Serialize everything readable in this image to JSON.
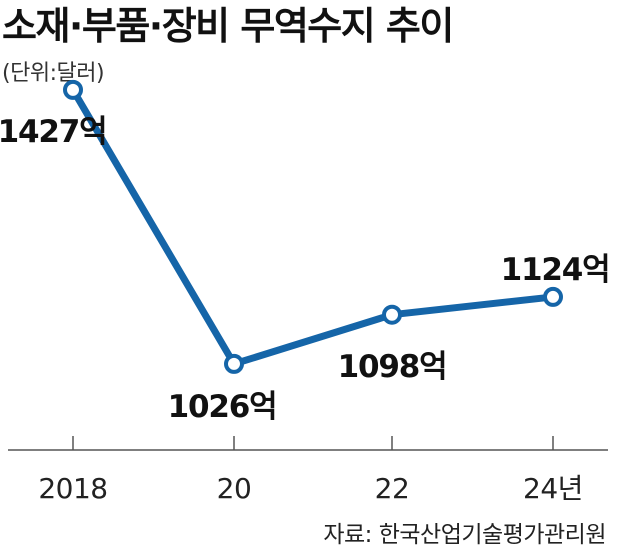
{
  "chart_data": {
    "type": "line",
    "title": "소재·부품·장비 무역수지 추이",
    "subtitle": "(단위:달러)",
    "categories": [
      "2018",
      "20",
      "22",
      "24년"
    ],
    "values": [
      1427,
      1026,
      1098,
      1124
    ],
    "data_labels": [
      "1427억",
      "1026억",
      "1098억",
      "1124억"
    ],
    "ylim": [
      900,
      1500
    ],
    "line_color": "#1565a8",
    "marker_fill": "#ffffff",
    "grid": false,
    "source": "자료: 한국산업기술평가관리원"
  }
}
